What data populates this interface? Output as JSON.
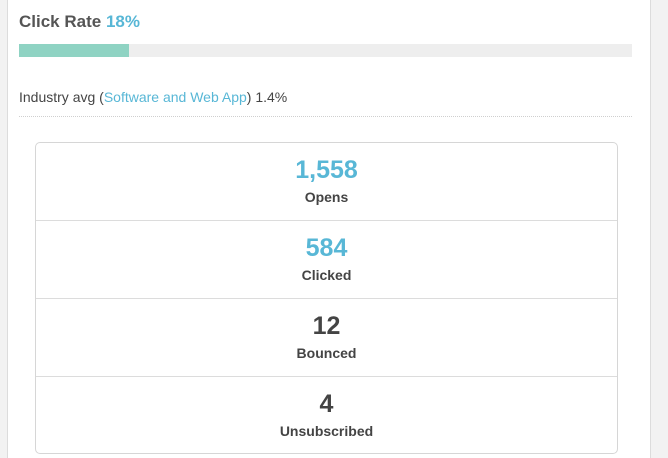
{
  "click_rate": {
    "title": "Click Rate",
    "percent_label": "18%",
    "progress": 0.18,
    "colors": {
      "fill": "#8fd3c3",
      "track": "#eeeeee",
      "accent": "#58b7d6"
    }
  },
  "industry": {
    "prefix": "Industry avg (",
    "category_link": "Software and Web App",
    "suffix": ")",
    "value": "1.4%"
  },
  "stats": [
    {
      "value": "1,558",
      "label": "Opens",
      "accent": true
    },
    {
      "value": "584",
      "label": "Clicked",
      "accent": true
    },
    {
      "value": "12",
      "label": "Bounced",
      "accent": false
    },
    {
      "value": "4",
      "label": "Unsubscribed",
      "accent": false
    }
  ]
}
